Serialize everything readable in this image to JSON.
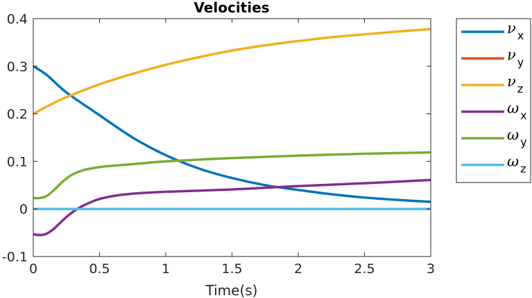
{
  "chart_data": {
    "type": "line",
    "title": "Velocities",
    "xlabel": "Time(s)",
    "ylabel": "",
    "xlim": [
      0,
      3
    ],
    "ylim": [
      -0.1,
      0.4
    ],
    "xticks": [
      0,
      0.5,
      1,
      1.5,
      2,
      2.5,
      3
    ],
    "xtick_labels": [
      "0",
      "0.5",
      "1",
      "1.5",
      "2",
      "2.5",
      "3"
    ],
    "yticks": [
      -0.1,
      0,
      0.1,
      0.2,
      0.3,
      0.4
    ],
    "ytick_labels": [
      "-0.1",
      "0",
      "0.1",
      "0.2",
      "0.3",
      "0.4"
    ],
    "grid": false,
    "legend_position": "outside-right",
    "series": [
      {
        "name": "νx",
        "symbol": "ν",
        "sub": "x",
        "color": "#0072BD",
        "x": [
          0,
          0.1,
          0.25,
          0.5,
          0.75,
          1,
          1.25,
          1.5,
          1.75,
          2,
          2.25,
          2.5,
          2.75,
          3
        ],
        "y": [
          0.3,
          0.282,
          0.245,
          0.197,
          0.15,
          0.113,
          0.085,
          0.065,
          0.05,
          0.04,
          0.031,
          0.024,
          0.019,
          0.015
        ]
      },
      {
        "name": "νy",
        "symbol": "ν",
        "sub": "y",
        "color": "#D95319",
        "x": [
          0,
          3
        ],
        "y": [
          0,
          0
        ]
      },
      {
        "name": "νz",
        "symbol": "ν",
        "sub": "z",
        "color": "#EDB120",
        "x": [
          0,
          0.1,
          0.25,
          0.5,
          0.75,
          1,
          1.25,
          1.5,
          1.75,
          2,
          2.25,
          2.5,
          2.75,
          3
        ],
        "y": [
          0.2,
          0.215,
          0.235,
          0.262,
          0.284,
          0.303,
          0.319,
          0.333,
          0.344,
          0.353,
          0.361,
          0.367,
          0.373,
          0.378
        ]
      },
      {
        "name": "ωx",
        "symbol": "ω",
        "sub": "x",
        "color": "#7E2F8E",
        "x": [
          0,
          0.05,
          0.1,
          0.15,
          0.2,
          0.25,
          0.3,
          0.35,
          0.4,
          0.45,
          0.5,
          0.6,
          0.75,
          1,
          1.5,
          2,
          2.5,
          3
        ],
        "y": [
          -0.053,
          -0.055,
          -0.052,
          -0.043,
          -0.03,
          -0.017,
          -0.006,
          0.003,
          0.01,
          0.016,
          0.021,
          0.027,
          0.032,
          0.036,
          0.041,
          0.048,
          0.054,
          0.061
        ]
      },
      {
        "name": "ωy",
        "symbol": "ω",
        "sub": "y",
        "color": "#77AC30",
        "x": [
          0,
          0.05,
          0.1,
          0.15,
          0.2,
          0.25,
          0.3,
          0.35,
          0.4,
          0.5,
          0.6,
          0.75,
          1,
          1.5,
          2,
          2.5,
          3
        ],
        "y": [
          0.023,
          0.023,
          0.027,
          0.038,
          0.052,
          0.064,
          0.073,
          0.079,
          0.083,
          0.088,
          0.091,
          0.094,
          0.1,
          0.107,
          0.112,
          0.116,
          0.119
        ]
      },
      {
        "name": "ωz",
        "symbol": "ω",
        "sub": "z",
        "color": "#4DBEEE",
        "x": [
          0,
          3
        ],
        "y": [
          0,
          0
        ]
      }
    ]
  }
}
